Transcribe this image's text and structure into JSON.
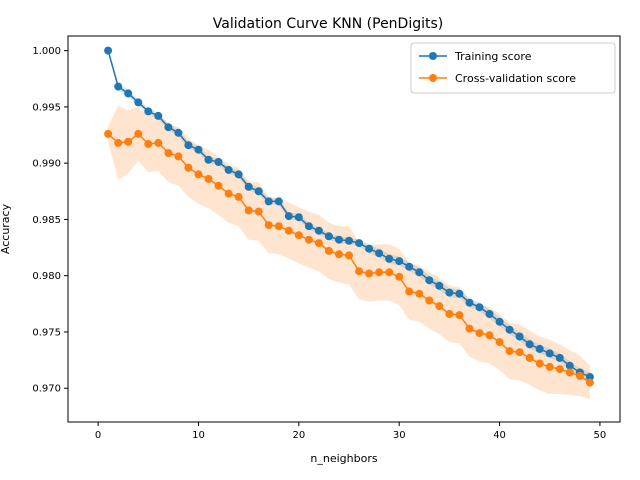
{
  "chart_data": {
    "type": "line",
    "title": "Validation Curve KNN (PenDigits)",
    "xlabel": "n_neighbors",
    "ylabel": "Accuracy",
    "xlim": [
      -3,
      52
    ],
    "ylim": [
      0.967,
      1.0013
    ],
    "xticks": [
      0,
      10,
      20,
      30,
      40,
      50
    ],
    "yticks": [
      0.97,
      0.975,
      0.98,
      0.985,
      0.99,
      0.995,
      1.0
    ],
    "legend_position": "top-right",
    "x": [
      1,
      2,
      3,
      4,
      5,
      6,
      7,
      8,
      9,
      10,
      11,
      12,
      13,
      14,
      15,
      16,
      17,
      18,
      19,
      20,
      21,
      22,
      23,
      24,
      25,
      26,
      27,
      28,
      29,
      30,
      31,
      32,
      33,
      34,
      35,
      36,
      37,
      38,
      39,
      40,
      41,
      42,
      43,
      44,
      45,
      46,
      47,
      48,
      49
    ],
    "series": [
      {
        "name": "Training score",
        "color": "#1f77b4",
        "values": [
          1.0,
          0.9968,
          0.9962,
          0.9954,
          0.9946,
          0.9942,
          0.9932,
          0.9927,
          0.9916,
          0.9912,
          0.9903,
          0.9901,
          0.9894,
          0.989,
          0.9879,
          0.9875,
          0.9866,
          0.9866,
          0.9853,
          0.9852,
          0.9844,
          0.984,
          0.9835,
          0.9832,
          0.9831,
          0.9829,
          0.9824,
          0.982,
          0.9815,
          0.9813,
          0.9808,
          0.9803,
          0.9796,
          0.9791,
          0.9785,
          0.9784,
          0.9776,
          0.9772,
          0.9766,
          0.9759,
          0.9752,
          0.9746,
          0.9739,
          0.9735,
          0.9731,
          0.9727,
          0.972,
          0.9714,
          0.971
        ],
        "band": [
          0.0002,
          0.0003,
          0.0003,
          0.0003,
          0.0003,
          0.0003,
          0.0003,
          0.0003,
          0.0003,
          0.0003,
          0.0003,
          0.0003,
          0.0003,
          0.0003,
          0.0003,
          0.0003,
          0.0003,
          0.0003,
          0.0003,
          0.0003,
          0.0003,
          0.0003,
          0.0003,
          0.0003,
          0.0003,
          0.0003,
          0.0004,
          0.0004,
          0.0004,
          0.0004,
          0.0004,
          0.0004,
          0.0004,
          0.0004,
          0.0004,
          0.0004,
          0.0004,
          0.0004,
          0.0004,
          0.0004,
          0.0004,
          0.0004,
          0.0004,
          0.0004,
          0.0004,
          0.0004,
          0.0004,
          0.0004,
          0.0004
        ]
      },
      {
        "name": "Cross-validation score",
        "color": "#ff7f0e",
        "values": [
          0.9926,
          0.9918,
          0.9919,
          0.9926,
          0.9917,
          0.9918,
          0.9909,
          0.9906,
          0.9896,
          0.989,
          0.9886,
          0.988,
          0.9873,
          0.987,
          0.9858,
          0.9857,
          0.9845,
          0.9844,
          0.984,
          0.9836,
          0.9832,
          0.9829,
          0.9822,
          0.9819,
          0.9818,
          0.9804,
          0.9802,
          0.9803,
          0.9803,
          0.9799,
          0.9786,
          0.9784,
          0.9778,
          0.9773,
          0.9766,
          0.9765,
          0.9753,
          0.9749,
          0.9747,
          0.9741,
          0.9733,
          0.9732,
          0.9727,
          0.9722,
          0.9719,
          0.9717,
          0.9714,
          0.9711,
          0.9705
        ],
        "band": [
          0.0007,
          0.0033,
          0.0028,
          0.0024,
          0.0025,
          0.0025,
          0.0026,
          0.0026,
          0.0026,
          0.0026,
          0.0026,
          0.0026,
          0.0026,
          0.0026,
          0.0026,
          0.0026,
          0.0025,
          0.0025,
          0.0025,
          0.0025,
          0.0025,
          0.0025,
          0.0025,
          0.0025,
          0.0026,
          0.0025,
          0.0025,
          0.0025,
          0.0025,
          0.0025,
          0.0025,
          0.0025,
          0.0025,
          0.0025,
          0.0025,
          0.0025,
          0.0025,
          0.0025,
          0.0025,
          0.0025,
          0.0025,
          0.0025,
          0.0024,
          0.0024,
          0.0024,
          0.0022,
          0.002,
          0.0018,
          0.0015
        ]
      }
    ]
  }
}
